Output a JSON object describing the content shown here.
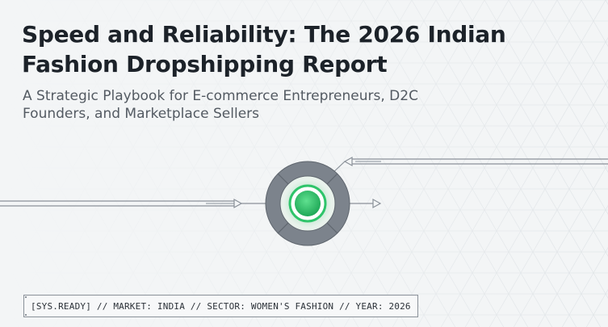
{
  "header": {
    "title": "Speed and Reliability: The 2026 Indian Fashion Dropshipping Report",
    "subtitle": "A Strategic Playbook for E-commerce Entrepreneurs, D2C Founders, and Marketplace Sellers"
  },
  "status_bar": {
    "text": "[SYS.READY] // MARKET: INDIA // SECTOR: WOMEN'S FASHION // YEAR: 2026"
  },
  "colors": {
    "background": "#f3f5f6",
    "title": "#1c2229",
    "subtitle": "#535a62",
    "hub_gray": "#7c838c",
    "accent_green": "#2ec46a",
    "line_gray": "#8a9199"
  },
  "icons": {
    "hub": "hub-node-icon",
    "arrow_in": "arrow-right-icon",
    "arrow_out": "arrow-left-icon"
  }
}
